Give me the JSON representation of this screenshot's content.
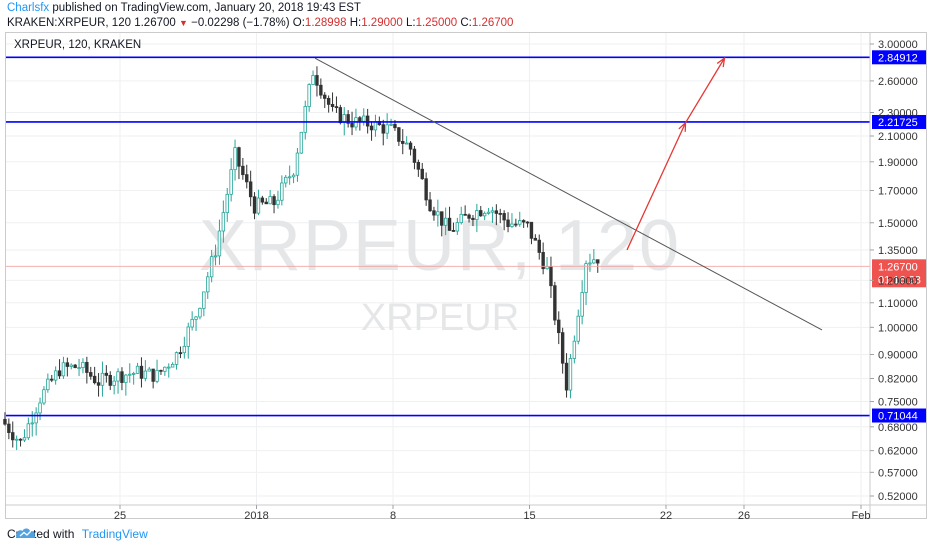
{
  "header": {
    "author": "Charlsfx",
    "published_text": " published on TradingView.com, January 20, 2018 19:43 EST",
    "symbol": "KRAKEN:XRPEUR, 120",
    "price": "1.26700",
    "change": "−0.02298 (−1.78%)",
    "o_label": "O:",
    "o_value": "1.28998",
    "h_label": "H:",
    "h_value": "1.29000",
    "l_label": "L:",
    "l_value": "1.25000",
    "c_label": "C:",
    "c_value": "1.26700"
  },
  "chart_data": {
    "type": "candlestick",
    "title": "XRPEUR, 120, KRAKEN",
    "watermark_large": "XRPEUR, 120",
    "watermark_small": "XRPEUR",
    "y_ticks": [
      3.0,
      2.6,
      2.3,
      2.1,
      1.9,
      1.7,
      1.5,
      1.35,
      1.2,
      1.1,
      1.0,
      0.9,
      0.82,
      0.75,
      0.68,
      0.62,
      0.57,
      0.52
    ],
    "y_tick_labels": [
      "3.00000",
      "2.60000",
      "2.30000",
      "2.10000",
      "1.90000",
      "1.70000",
      "1.50000",
      "1.35000",
      "1.20000",
      "1.10000",
      "1.00000",
      "0.90000",
      "0.82000",
      "0.75000",
      "0.68000",
      "0.62000",
      "0.57000",
      "0.52000"
    ],
    "x_tick_labels": [
      "25",
      "2018",
      "8",
      "15",
      "22",
      "26",
      "Feb"
    ],
    "x_range": [
      "2017-12-19",
      "2018-02-03"
    ],
    "y_range": [
      0.5,
      3.1
    ],
    "y_scale": "log",
    "horizontal_levels": [
      {
        "value": 2.84912,
        "label": "2.84912",
        "color": "#0000ff"
      },
      {
        "value": 2.21725,
        "label": "2.21725",
        "color": "#0000ff"
      },
      {
        "value": 0.71044,
        "label": "0.71044",
        "color": "#0000ff"
      }
    ],
    "last_price": {
      "value": 1.267,
      "label": "1.26700",
      "countdown": "01:16:23",
      "color": "#ef5350"
    },
    "trendline": {
      "from": {
        "date": "2018-01-04",
        "price": 2.84
      },
      "to": {
        "date": "2018-01-30",
        "price": 0.99
      },
      "color": "#555555"
    },
    "projection_arrow": [
      {
        "date": "2018-01-20",
        "price": 1.35
      },
      {
        "date": "2018-01-23",
        "price": 2.21
      },
      {
        "date": "2018-01-25",
        "price": 2.84
      }
    ],
    "projection_color": "#e53935",
    "price_path": [
      {
        "date": "2017-12-19",
        "price": 0.7
      },
      {
        "date": "2017-12-20",
        "price": 0.64
      },
      {
        "date": "2017-12-21",
        "price": 0.76
      },
      {
        "date": "2017-12-22",
        "price": 0.85
      },
      {
        "date": "2017-12-23",
        "price": 0.86
      },
      {
        "date": "2017-12-24",
        "price": 0.81
      },
      {
        "date": "2017-12-25",
        "price": 0.83
      },
      {
        "date": "2017-12-26",
        "price": 0.84
      },
      {
        "date": "2017-12-27",
        "price": 0.83
      },
      {
        "date": "2017-12-28",
        "price": 0.9
      },
      {
        "date": "2017-12-29",
        "price": 1.05
      },
      {
        "date": "2017-12-30",
        "price": 1.35
      },
      {
        "date": "2017-12-31",
        "price": 1.95
      },
      {
        "date": "2018-01-01",
        "price": 1.6
      },
      {
        "date": "2018-01-02",
        "price": 1.62
      },
      {
        "date": "2018-01-03",
        "price": 1.85
      },
      {
        "date": "2018-01-04",
        "price": 2.7
      },
      {
        "date": "2018-01-05",
        "price": 2.3
      },
      {
        "date": "2018-01-06",
        "price": 2.22
      },
      {
        "date": "2018-01-07",
        "price": 2.2
      },
      {
        "date": "2018-01-08",
        "price": 2.15
      },
      {
        "date": "2018-01-09",
        "price": 2.0
      },
      {
        "date": "2018-01-10",
        "price": 1.62
      },
      {
        "date": "2018-01-11",
        "price": 1.45
      },
      {
        "date": "2018-01-12",
        "price": 1.55
      },
      {
        "date": "2018-01-13",
        "price": 1.6
      },
      {
        "date": "2018-01-14",
        "price": 1.5
      },
      {
        "date": "2018-01-15",
        "price": 1.48
      },
      {
        "date": "2018-01-16",
        "price": 1.25
      },
      {
        "date": "2018-01-17",
        "price": 0.8
      },
      {
        "date": "2018-01-18",
        "price": 1.3
      },
      {
        "date": "2018-01-19",
        "price": 1.32
      },
      {
        "date": "2018-01-20",
        "price": 1.27
      }
    ]
  },
  "footer": {
    "created_with": "Created with",
    "brand": "TradingView"
  }
}
